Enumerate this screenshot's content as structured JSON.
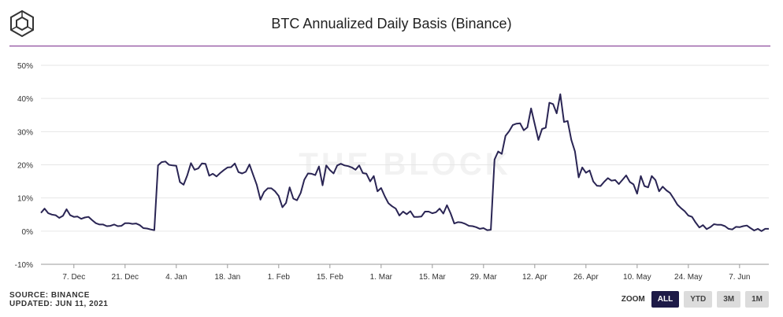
{
  "header": {
    "title": "BTC Annualized Daily Basis (Binance)"
  },
  "footer": {
    "source": "SOURCE: BINANCE",
    "updated": "UPDATED: JUN 11, 2021"
  },
  "zoom": {
    "label": "ZOOM",
    "buttons": [
      "ALL",
      "YTD",
      "3M",
      "1M"
    ],
    "active": "ALL"
  },
  "watermark": "THE BLOCK",
  "colors": {
    "line": "#2a2554",
    "divider": "#7a2c8c",
    "active_button": "#1d1a47"
  },
  "chart_data": {
    "type": "line",
    "title": "BTC Annualized Daily Basis (Binance)",
    "xlabel": "",
    "ylabel": "",
    "ylim": [
      -10,
      50
    ],
    "yticks": [
      -10,
      0,
      10,
      20,
      30,
      40,
      50
    ],
    "ytick_labels": [
      "-10%",
      "0%",
      "10%",
      "20%",
      "30%",
      "40%",
      "50%"
    ],
    "grid": true,
    "legend": "none",
    "x_range": [
      "2020-11-28",
      "2021-06-11"
    ],
    "xticks": [
      {
        "day": 9,
        "label": "7. Dec"
      },
      {
        "day": 23,
        "label": "21. Dec"
      },
      {
        "day": 37,
        "label": "4. Jan"
      },
      {
        "day": 51,
        "label": "18. Jan"
      },
      {
        "day": 65,
        "label": "1. Feb"
      },
      {
        "day": 79,
        "label": "15. Feb"
      },
      {
        "day": 93,
        "label": "1. Mar"
      },
      {
        "day": 107,
        "label": "15. Mar"
      },
      {
        "day": 121,
        "label": "29. Mar"
      },
      {
        "day": 135,
        "label": "12. Apr"
      },
      {
        "day": 149,
        "label": "26. Apr"
      },
      {
        "day": 163,
        "label": "10. May"
      },
      {
        "day": 177,
        "label": "24. May"
      },
      {
        "day": 191,
        "label": "7. Jun"
      }
    ],
    "series": [
      {
        "name": "BTC Annualized Daily Basis",
        "x_start": "2020-11-28",
        "x_step_days": 1,
        "values": [
          5.5,
          6.8,
          5.4,
          5.0,
          4.8,
          4.0,
          4.6,
          6.6,
          4.8,
          4.3,
          4.4,
          3.7,
          4.1,
          4.3,
          3.3,
          2.4,
          2.0,
          2.0,
          1.5,
          1.6,
          2.0,
          1.5,
          1.6,
          2.4,
          2.4,
          2.2,
          2.3,
          1.8,
          0.9,
          0.8,
          0.5,
          0.3,
          19.8,
          20.8,
          21.0,
          20.0,
          19.8,
          19.7,
          14.8,
          14.0,
          16.8,
          20.5,
          18.5,
          18.9,
          20.4,
          20.3,
          16.7,
          17.3,
          16.5,
          17.5,
          18.4,
          19.2,
          19.3,
          20.4,
          17.8,
          17.4,
          17.9,
          20.1,
          17.0,
          14.0,
          9.5,
          11.8,
          12.9,
          12.9,
          12.0,
          10.6,
          7.2,
          8.5,
          13.2,
          9.8,
          9.3,
          11.5,
          15.5,
          17.4,
          17.3,
          16.9,
          19.5,
          13.8,
          19.8,
          18.4,
          17.4,
          19.8,
          20.3,
          19.8,
          19.6,
          19.2,
          18.5,
          19.8,
          17.5,
          17.3,
          15.0,
          16.6,
          12.0,
          13.0,
          10.5,
          8.4,
          7.5,
          6.8,
          4.7,
          5.9,
          5.1,
          6.0,
          4.3,
          4.3,
          4.4,
          5.9,
          5.9,
          5.4,
          5.7,
          6.8,
          5.3,
          7.8,
          5.4,
          2.3,
          2.7,
          2.6,
          2.2,
          1.6,
          1.5,
          1.2,
          0.7,
          0.9,
          0.3,
          0.4,
          21.6,
          24.0,
          23.3,
          28.7,
          30.1,
          32.0,
          32.4,
          32.5,
          30.4,
          31.3,
          37.0,
          32.3,
          27.5,
          30.8,
          31.2,
          38.7,
          38.3,
          35.5,
          41.3,
          32.9,
          33.2,
          27.5,
          24.0,
          16.2,
          19.2,
          17.6,
          18.3,
          15.0,
          13.7,
          13.6,
          14.9,
          16.0,
          15.2,
          15.4,
          14.2,
          15.5,
          16.8,
          14.8,
          14.1,
          11.3,
          16.6,
          13.6,
          13.2,
          16.6,
          15.4,
          12.0,
          13.4,
          12.3,
          11.5,
          9.8,
          8.0,
          6.9,
          6.0,
          4.7,
          4.3,
          2.6,
          1.1,
          1.8,
          0.6,
          1.2,
          2.1,
          1.9,
          1.9,
          1.5,
          0.7,
          0.5,
          1.3,
          1.2,
          1.5,
          1.7,
          0.9,
          0.2,
          0.7,
          0.0,
          0.7,
          0.7
        ]
      }
    ]
  }
}
